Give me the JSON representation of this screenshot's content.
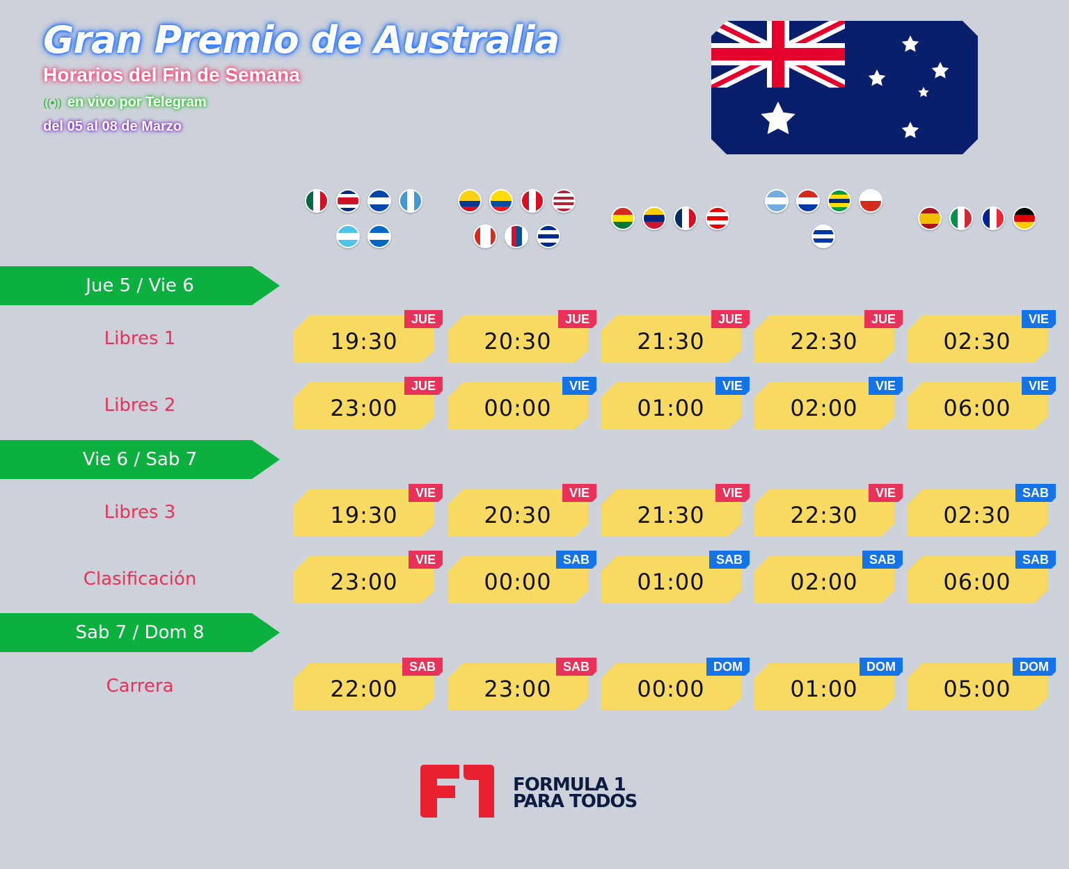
{
  "header": {
    "title": "Gran Premio de Australia",
    "subtitle": "Horarios del Fin de Semana",
    "live_icon": "broadcast-icon",
    "live_glyph": "((•))",
    "live_text": "en vivo por Telegram",
    "dates": "del 05 al 08 de Marzo"
  },
  "colors": {
    "jue_vie_red": "#e8325a",
    "blue": "#1473e6",
    "card": "#f8d962",
    "green": "#0bb03f",
    "session_text": "#e8325a"
  },
  "flag_groups": [
    [
      "mexico",
      "costa-rica",
      "el-salvador",
      "guatemala",
      "honduras",
      "nicaragua"
    ],
    [
      "colombia",
      "ecuador",
      "peru",
      "usa",
      "canada",
      "panama",
      "cuba"
    ],
    [
      "bolivia",
      "venezuela",
      "dominican-republic",
      "puerto-rico"
    ],
    [
      "argentina",
      "paraguay",
      "brazil",
      "chile",
      "uruguay"
    ],
    [
      "spain",
      "italy",
      "france",
      "germany"
    ]
  ],
  "days": [
    {
      "label": "Jue 5 / Vie 6",
      "sessions": [
        {
          "name": "Libres 1",
          "slots": [
            [
              "19:30",
              "JUE"
            ],
            [
              "20:30",
              "JUE"
            ],
            [
              "21:30",
              "JUE"
            ],
            [
              "22:30",
              "JUE"
            ],
            [
              "02:30",
              "VIE"
            ]
          ]
        },
        {
          "name": "Libres 2",
          "slots": [
            [
              "23:00",
              "JUE"
            ],
            [
              "00:00",
              "VIE"
            ],
            [
              "01:00",
              "VIE"
            ],
            [
              "02:00",
              "VIE"
            ],
            [
              "06:00",
              "VIE"
            ]
          ]
        }
      ]
    },
    {
      "label": "Vie 6 / Sab 7",
      "sessions": [
        {
          "name": "Libres 3",
          "slots": [
            [
              "19:30",
              "VIE"
            ],
            [
              "20:30",
              "VIE"
            ],
            [
              "21:30",
              "VIE"
            ],
            [
              "22:30",
              "VIE"
            ],
            [
              "02:30",
              "SAB"
            ]
          ]
        },
        {
          "name": "Clasificación",
          "slots": [
            [
              "23:00",
              "VIE"
            ],
            [
              "00:00",
              "SAB"
            ],
            [
              "01:00",
              "SAB"
            ],
            [
              "02:00",
              "SAB"
            ],
            [
              "06:00",
              "SAB"
            ]
          ]
        }
      ]
    },
    {
      "label": "Sab 7 / Dom 8",
      "sessions": [
        {
          "name": "Carrera",
          "slots": [
            [
              "22:00",
              "SAB"
            ],
            [
              "23:00",
              "SAB"
            ],
            [
              "00:00",
              "DOM"
            ],
            [
              "01:00",
              "DOM"
            ],
            [
              "05:00",
              "DOM"
            ]
          ]
        }
      ]
    }
  ],
  "logo": {
    "mark": "F1",
    "line1": "FORMULA 1",
    "line2": "PARA TODOS"
  }
}
